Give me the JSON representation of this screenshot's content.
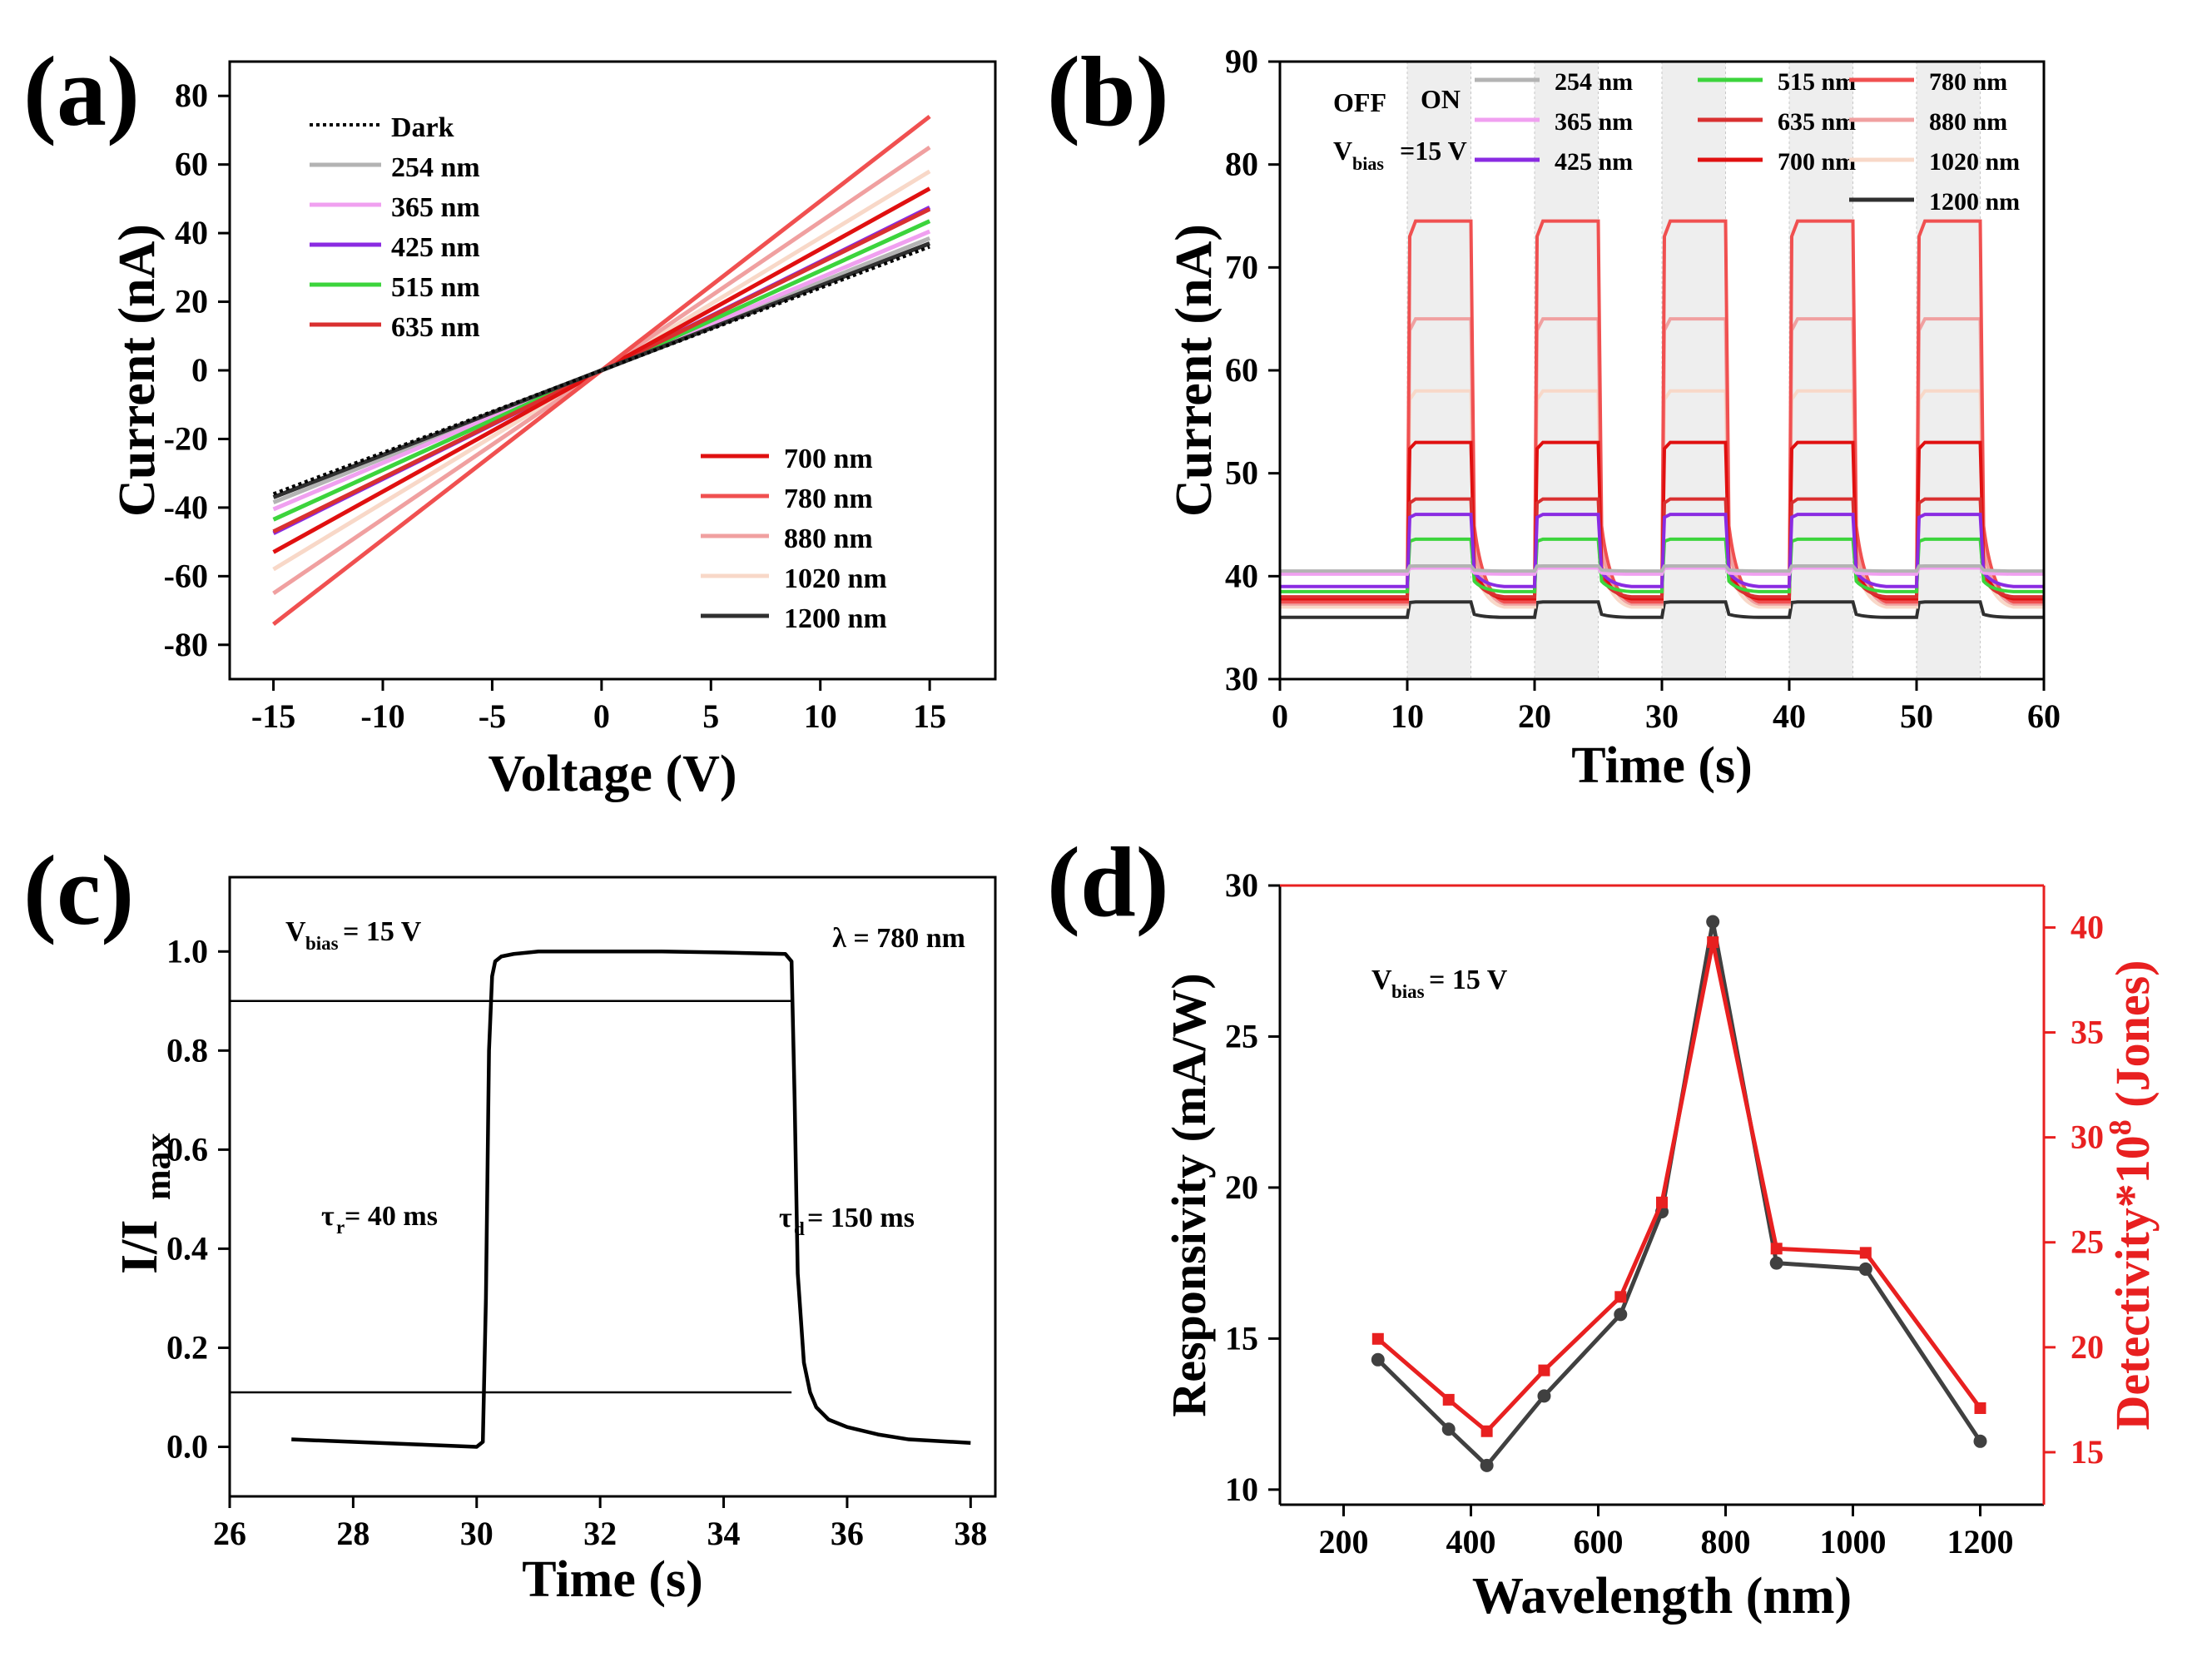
{
  "colors": {
    "dark": "#000000",
    "nm254": "#b3b3b3",
    "nm365": "#f0a0f0",
    "nm425": "#8a2be2",
    "nm515": "#3cd43c",
    "nm635": "#d93030",
    "nm700": "#e01010",
    "nm780": "#f05050",
    "nm880": "#f0a0a0",
    "nm1020": "#f8d8c8",
    "nm1200": "#303030",
    "d_black": "#404040",
    "d_red": "#e82020"
  },
  "chart_data": [
    {
      "panel": "(a)",
      "type": "line",
      "xlabel": "Voltage (V)",
      "ylabel": "Current (nA)",
      "xlim": [
        -17,
        18
      ],
      "ylim": [
        -90,
        90
      ],
      "xticks": [
        -15,
        -10,
        -5,
        0,
        5,
        10,
        15
      ],
      "yticks": [
        -80,
        -60,
        -40,
        -20,
        0,
        20,
        40,
        60,
        80
      ],
      "x": [
        -15,
        15
      ],
      "series": [
        {
          "name": "Dark",
          "color_key": "dark",
          "dotted": true,
          "values": [
            -36,
            36
          ]
        },
        {
          "name": "254 nm",
          "color_key": "nm254",
          "values": [
            -38.5,
            38.5
          ]
        },
        {
          "name": "365 nm",
          "color_key": "nm365",
          "values": [
            -40.5,
            40.5
          ]
        },
        {
          "name": "425 nm",
          "color_key": "nm425",
          "values": [
            -47.5,
            47.5
          ]
        },
        {
          "name": "515 nm",
          "color_key": "nm515",
          "values": [
            -43.5,
            43.5
          ]
        },
        {
          "name": "635 nm",
          "color_key": "nm635",
          "values": [
            -47,
            47
          ]
        },
        {
          "name": "700 nm",
          "color_key": "nm700",
          "values": [
            -53,
            53
          ]
        },
        {
          "name": "780 nm",
          "color_key": "nm780",
          "values": [
            -74,
            74
          ]
        },
        {
          "name": "880 nm",
          "color_key": "nm880",
          "values": [
            -65,
            65
          ]
        },
        {
          "name": "1020 nm",
          "color_key": "nm1020",
          "values": [
            -58,
            58
          ]
        },
        {
          "name": "1200 nm",
          "color_key": "nm1200",
          "values": [
            -37,
            37
          ]
        }
      ]
    },
    {
      "panel": "(b)",
      "type": "line",
      "xlabel": "Time (s)",
      "ylabel": "Current (nA)",
      "xlim": [
        0,
        60
      ],
      "ylim": [
        30,
        90
      ],
      "xticks": [
        0,
        10,
        20,
        30,
        40,
        50,
        60
      ],
      "yticks": [
        30,
        40,
        50,
        60,
        70,
        80,
        90
      ],
      "on_intervals": [
        [
          10,
          15
        ],
        [
          20,
          25
        ],
        [
          30,
          35
        ],
        [
          40,
          45
        ],
        [
          50,
          55
        ]
      ],
      "annotations": [
        "OFF",
        "ON",
        "V",
        "bias",
        "=15 V"
      ],
      "series": [
        {
          "name": "254 nm",
          "color_key": "nm254",
          "off": 40.5,
          "on": 41.0
        },
        {
          "name": "365 nm",
          "color_key": "nm365",
          "off": 40.2,
          "on": 40.8
        },
        {
          "name": "425 nm",
          "color_key": "nm425",
          "off": 39.0,
          "on": 46.0
        },
        {
          "name": "515 nm",
          "color_key": "nm515",
          "off": 38.5,
          "on": 43.6
        },
        {
          "name": "635 nm",
          "color_key": "nm635",
          "off": 38.0,
          "on": 47.5
        },
        {
          "name": "700 nm",
          "color_key": "nm700",
          "off": 37.8,
          "on": 53.0
        },
        {
          "name": "780 nm",
          "color_key": "nm780",
          "off": 37.5,
          "on": 74.5
        },
        {
          "name": "880 nm",
          "color_key": "nm880",
          "off": 37.3,
          "on": 65.0
        },
        {
          "name": "1020 nm",
          "color_key": "nm1020",
          "off": 37.0,
          "on": 58.0
        },
        {
          "name": "1200 nm",
          "color_key": "nm1200",
          "off": 36.0,
          "on": 37.5
        }
      ]
    },
    {
      "panel": "(c)",
      "type": "line",
      "xlabel": "Time (s)",
      "ylabel_main": "I/I",
      "ylabel_sub": "max",
      "xlim": [
        26,
        38.4
      ],
      "ylim": [
        -0.1,
        1.15
      ],
      "xticks": [
        26,
        28,
        30,
        32,
        34,
        36,
        38
      ],
      "yticks": [
        0.0,
        0.2,
        0.4,
        0.6,
        0.8,
        1.0
      ],
      "ytick_labels": [
        "0.0",
        "0.2",
        "0.4",
        "0.6",
        "0.8",
        "1.0"
      ],
      "x": [
        27.0,
        28.0,
        29.0,
        30.0,
        30.1,
        30.15,
        30.2,
        30.25,
        30.3,
        30.4,
        30.6,
        31.0,
        32.0,
        33.0,
        34.0,
        35.0,
        35.1,
        35.15,
        35.2,
        35.3,
        35.4,
        35.5,
        35.7,
        36.0,
        36.5,
        37.0,
        38.0
      ],
      "y": [
        0.015,
        0.01,
        0.005,
        0.0,
        0.01,
        0.3,
        0.8,
        0.95,
        0.98,
        0.99,
        0.995,
        1.0,
        1.0,
        1.0,
        0.998,
        0.995,
        0.98,
        0.7,
        0.35,
        0.17,
        0.11,
        0.08,
        0.055,
        0.04,
        0.025,
        0.015,
        0.008
      ],
      "threshold_lines": [
        0.9,
        0.11
      ],
      "threshold_x": [
        26,
        35.1
      ],
      "annotations": {
        "vbias_main": "V",
        "vbias_sub": "bias",
        "vbias_rest": "= 15 V",
        "lambda": "λ = 780 nm",
        "tau_r_main": "τ",
        "tau_r_sub": "r",
        "tau_r_rest": " = 40 ms",
        "tau_d_main": "τ",
        "tau_d_sub": "d",
        "tau_d_rest": " = 150 ms"
      }
    },
    {
      "panel": "(d)",
      "type": "line",
      "xlabel": "Wavelength (nm)",
      "ylabel_left": "Responsivity (mA/W)",
      "ylabel_right_main": "Detectivity*10",
      "ylabel_right_sup": "8",
      "ylabel_right_rest": " (Jones)",
      "xlim": [
        100,
        1300
      ],
      "ylim_left": [
        9.5,
        30
      ],
      "ylim_right": [
        12.5,
        42
      ],
      "xticks": [
        200,
        400,
        600,
        800,
        1000,
        1200
      ],
      "yticks_left": [
        10,
        15,
        20,
        25,
        30
      ],
      "yticks_right": [
        15,
        20,
        25,
        30,
        35,
        40
      ],
      "x": [
        254,
        365,
        425,
        515,
        635,
        700,
        780,
        880,
        1020,
        1200
      ],
      "responsivity": [
        14.3,
        12.0,
        10.8,
        13.1,
        15.8,
        19.2,
        28.8,
        17.5,
        17.3,
        11.6
      ],
      "detectivity": [
        20.4,
        17.5,
        16.0,
        18.9,
        22.4,
        26.9,
        39.3,
        24.7,
        24.5,
        17.1
      ],
      "annotation_main": "V",
      "annotation_sub": "bias",
      "annotation_rest": "= 15 V"
    }
  ],
  "panel_labels": [
    "(a)",
    "(b)",
    "(c)",
    "(d)"
  ]
}
